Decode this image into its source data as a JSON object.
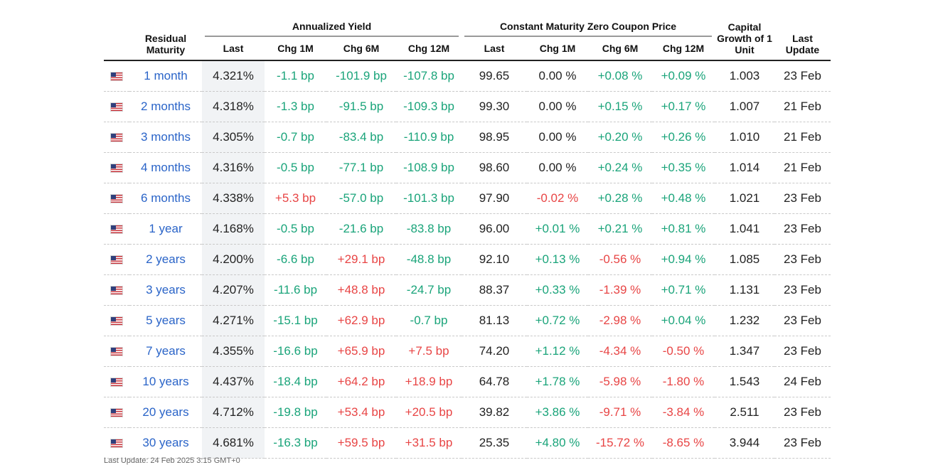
{
  "headers": {
    "residual_maturity": "Residual Maturity",
    "annualized_yield": "Annualized Yield",
    "zero_coupon": "Constant Maturity Zero Coupon Price",
    "capital_growth": "Capital Growth of 1 Unit",
    "last_update": "Last Update",
    "yield_cols": [
      "Last",
      "Chg 1M",
      "Chg 6M",
      "Chg 12M"
    ],
    "price_cols": [
      "Last",
      "Chg 1M",
      "Chg 6M",
      "Chg 12M"
    ]
  },
  "colors": {
    "positive": "#1aa47a",
    "negative": "#e84545",
    "link": "#2a64c8"
  },
  "rows": [
    {
      "maturity": "1 month",
      "y_last": "4.321%",
      "y_1m": "-1.1 bp",
      "y_6m": "-101.9 bp",
      "y_12m": "-107.8 bp",
      "p_last": "99.65",
      "p_1m": "0.00 %",
      "p_6m": "+0.08 %",
      "p_12m": "+0.09 %",
      "growth": "1.003",
      "update": "23 Feb",
      "cls": [
        "pos",
        "pos",
        "pos",
        "neu",
        "pos",
        "pos"
      ]
    },
    {
      "maturity": "2 months",
      "y_last": "4.318%",
      "y_1m": "-1.3 bp",
      "y_6m": "-91.5 bp",
      "y_12m": "-109.3 bp",
      "p_last": "99.30",
      "p_1m": "0.00 %",
      "p_6m": "+0.15 %",
      "p_12m": "+0.17 %",
      "growth": "1.007",
      "update": "21 Feb",
      "cls": [
        "pos",
        "pos",
        "pos",
        "neu",
        "pos",
        "pos"
      ]
    },
    {
      "maturity": "3 months",
      "y_last": "4.305%",
      "y_1m": "-0.7 bp",
      "y_6m": "-83.4 bp",
      "y_12m": "-110.9 bp",
      "p_last": "98.95",
      "p_1m": "0.00 %",
      "p_6m": "+0.20 %",
      "p_12m": "+0.26 %",
      "growth": "1.010",
      "update": "21 Feb",
      "cls": [
        "pos",
        "pos",
        "pos",
        "neu",
        "pos",
        "pos"
      ]
    },
    {
      "maturity": "4 months",
      "y_last": "4.316%",
      "y_1m": "-0.5 bp",
      "y_6m": "-77.1 bp",
      "y_12m": "-108.9 bp",
      "p_last": "98.60",
      "p_1m": "0.00 %",
      "p_6m": "+0.24 %",
      "p_12m": "+0.35 %",
      "growth": "1.014",
      "update": "21 Feb",
      "cls": [
        "pos",
        "pos",
        "pos",
        "neu",
        "pos",
        "pos"
      ]
    },
    {
      "maturity": "6 months",
      "y_last": "4.338%",
      "y_1m": "+5.3 bp",
      "y_6m": "-57.0 bp",
      "y_12m": "-101.3 bp",
      "p_last": "97.90",
      "p_1m": "-0.02 %",
      "p_6m": "+0.28 %",
      "p_12m": "+0.48 %",
      "growth": "1.021",
      "update": "23 Feb",
      "cls": [
        "neg",
        "pos",
        "pos",
        "neg",
        "pos",
        "pos"
      ]
    },
    {
      "maturity": "1 year",
      "y_last": "4.168%",
      "y_1m": "-0.5 bp",
      "y_6m": "-21.6 bp",
      "y_12m": "-83.8 bp",
      "p_last": "96.00",
      "p_1m": "+0.01 %",
      "p_6m": "+0.21 %",
      "p_12m": "+0.81 %",
      "growth": "1.041",
      "update": "23 Feb",
      "cls": [
        "pos",
        "pos",
        "pos",
        "pos",
        "pos",
        "pos"
      ]
    },
    {
      "maturity": "2 years",
      "y_last": "4.200%",
      "y_1m": "-6.6 bp",
      "y_6m": "+29.1 bp",
      "y_12m": "-48.8 bp",
      "p_last": "92.10",
      "p_1m": "+0.13 %",
      "p_6m": "-0.56 %",
      "p_12m": "+0.94 %",
      "growth": "1.085",
      "update": "23 Feb",
      "cls": [
        "pos",
        "neg",
        "pos",
        "pos",
        "neg",
        "pos"
      ]
    },
    {
      "maturity": "3 years",
      "y_last": "4.207%",
      "y_1m": "-11.6 bp",
      "y_6m": "+48.8 bp",
      "y_12m": "-24.7 bp",
      "p_last": "88.37",
      "p_1m": "+0.33 %",
      "p_6m": "-1.39 %",
      "p_12m": "+0.71 %",
      "growth": "1.131",
      "update": "23 Feb",
      "cls": [
        "pos",
        "neg",
        "pos",
        "pos",
        "neg",
        "pos"
      ]
    },
    {
      "maturity": "5 years",
      "y_last": "4.271%",
      "y_1m": "-15.1 bp",
      "y_6m": "+62.9 bp",
      "y_12m": "-0.7 bp",
      "p_last": "81.13",
      "p_1m": "+0.72 %",
      "p_6m": "-2.98 %",
      "p_12m": "+0.04 %",
      "growth": "1.232",
      "update": "23 Feb",
      "cls": [
        "pos",
        "neg",
        "pos",
        "pos",
        "neg",
        "pos"
      ]
    },
    {
      "maturity": "7 years",
      "y_last": "4.355%",
      "y_1m": "-16.6 bp",
      "y_6m": "+65.9 bp",
      "y_12m": "+7.5 bp",
      "p_last": "74.20",
      "p_1m": "+1.12 %",
      "p_6m": "-4.34 %",
      "p_12m": "-0.50 %",
      "growth": "1.347",
      "update": "23 Feb",
      "cls": [
        "pos",
        "neg",
        "neg",
        "pos",
        "neg",
        "neg"
      ]
    },
    {
      "maturity": "10 years",
      "y_last": "4.437%",
      "y_1m": "-18.4 bp",
      "y_6m": "+64.2 bp",
      "y_12m": "+18.9 bp",
      "p_last": "64.78",
      "p_1m": "+1.78 %",
      "p_6m": "-5.98 %",
      "p_12m": "-1.80 %",
      "growth": "1.543",
      "update": "24 Feb",
      "cls": [
        "pos",
        "neg",
        "neg",
        "pos",
        "neg",
        "neg"
      ]
    },
    {
      "maturity": "20 years",
      "y_last": "4.712%",
      "y_1m": "-19.8 bp",
      "y_6m": "+53.4 bp",
      "y_12m": "+20.5 bp",
      "p_last": "39.82",
      "p_1m": "+3.86 %",
      "p_6m": "-9.71 %",
      "p_12m": "-3.84 %",
      "growth": "2.511",
      "update": "23 Feb",
      "cls": [
        "pos",
        "neg",
        "neg",
        "pos",
        "neg",
        "neg"
      ]
    },
    {
      "maturity": "30 years",
      "y_last": "4.681%",
      "y_1m": "-16.3 bp",
      "y_6m": "+59.5 bp",
      "y_12m": "+31.5 bp",
      "p_last": "25.35",
      "p_1m": "+4.80 %",
      "p_6m": "-15.72 %",
      "p_12m": "-8.65 %",
      "growth": "3.944",
      "update": "23 Feb",
      "cls": [
        "pos",
        "neg",
        "neg",
        "pos",
        "neg",
        "neg"
      ]
    }
  ],
  "footer": "Last Update: 24 Feb 2025 3:15 GMT+0"
}
